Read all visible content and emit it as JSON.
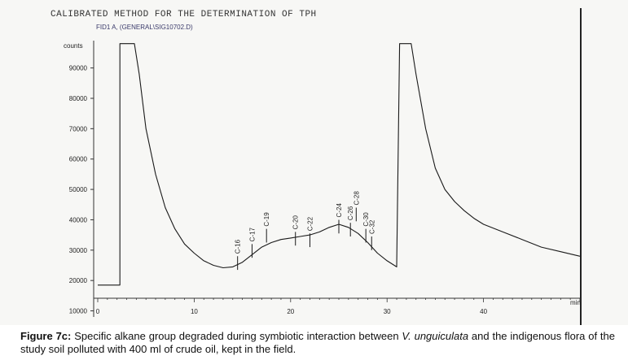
{
  "figure": {
    "method_title": "CALIBRATED METHOD FOR THE DETERMINATION OF TPH",
    "signal_label": "FID1 A, (GENERAL\\SIG10702.D)",
    "caption_label": "Figure 7c:",
    "caption_part1": " Specific alkane group degraded during symbiotic interaction between ",
    "caption_species": "V. unguiculata",
    "caption_part2": " and the indigenous flora of the study soil polluted with 400 ml of crude oil, kept in the field."
  },
  "chart_data": {
    "type": "line",
    "ylabel": "counts",
    "xlabel": "min",
    "xlim": [
      0,
      50
    ],
    "ylim": [
      8000,
      99000
    ],
    "x_ticks": [
      0,
      10,
      20,
      30,
      40
    ],
    "y_ticks": [
      10000,
      20000,
      30000,
      40000,
      50000,
      60000,
      70000,
      80000,
      90000
    ],
    "grid": false,
    "series": [
      {
        "values": [
          [
            0,
            18500
          ],
          [
            2.3,
            18500
          ],
          [
            2.3,
            98000
          ],
          [
            3.8,
            98000
          ],
          [
            4.3,
            88000
          ],
          [
            5,
            70000
          ],
          [
            6,
            55000
          ],
          [
            7,
            44000
          ],
          [
            8,
            37000
          ],
          [
            9,
            32000
          ],
          [
            10,
            29000
          ],
          [
            11,
            26500
          ],
          [
            12,
            25000
          ],
          [
            13,
            24200
          ],
          [
            14,
            24500
          ],
          [
            15,
            26000
          ],
          [
            16,
            28500
          ],
          [
            17,
            31000
          ],
          [
            18,
            32500
          ],
          [
            19,
            33500
          ],
          [
            20,
            34000
          ],
          [
            21,
            34500
          ],
          [
            22,
            35000
          ],
          [
            23,
            36000
          ],
          [
            24,
            37500
          ],
          [
            25,
            38500
          ],
          [
            26,
            37500
          ],
          [
            27,
            35500
          ],
          [
            28,
            32500
          ],
          [
            29,
            29000
          ],
          [
            30,
            26500
          ],
          [
            31,
            24500
          ],
          [
            31.3,
            98000
          ],
          [
            32.5,
            98000
          ],
          [
            33,
            88000
          ],
          [
            34,
            70000
          ],
          [
            35,
            57000
          ],
          [
            36,
            50000
          ],
          [
            37,
            46000
          ],
          [
            38,
            43000
          ],
          [
            39,
            40500
          ],
          [
            40,
            38500
          ],
          [
            42,
            36000
          ],
          [
            44,
            33500
          ],
          [
            46,
            31000
          ],
          [
            48,
            29500
          ],
          [
            50,
            28000
          ]
        ]
      }
    ],
    "peaks": [
      {
        "label": "C-16",
        "x": 14.5,
        "y": 28000
      },
      {
        "label": "C-17",
        "x": 16.0,
        "y": 32000
      },
      {
        "label": "C-19",
        "x": 17.5,
        "y": 37000
      },
      {
        "label": "C-20",
        "x": 20.5,
        "y": 36000
      },
      {
        "label": "C-22",
        "x": 22.0,
        "y": 35500
      },
      {
        "label": "C-24",
        "x": 25.0,
        "y": 40000
      },
      {
        "label": "C-26",
        "x": 26.2,
        "y": 39000
      },
      {
        "label": "C-28",
        "x": 26.8,
        "y": 44000
      },
      {
        "label": "C-30",
        "x": 27.8,
        "y": 37000
      },
      {
        "label": "C-32",
        "x": 28.4,
        "y": 34500
      }
    ]
  }
}
